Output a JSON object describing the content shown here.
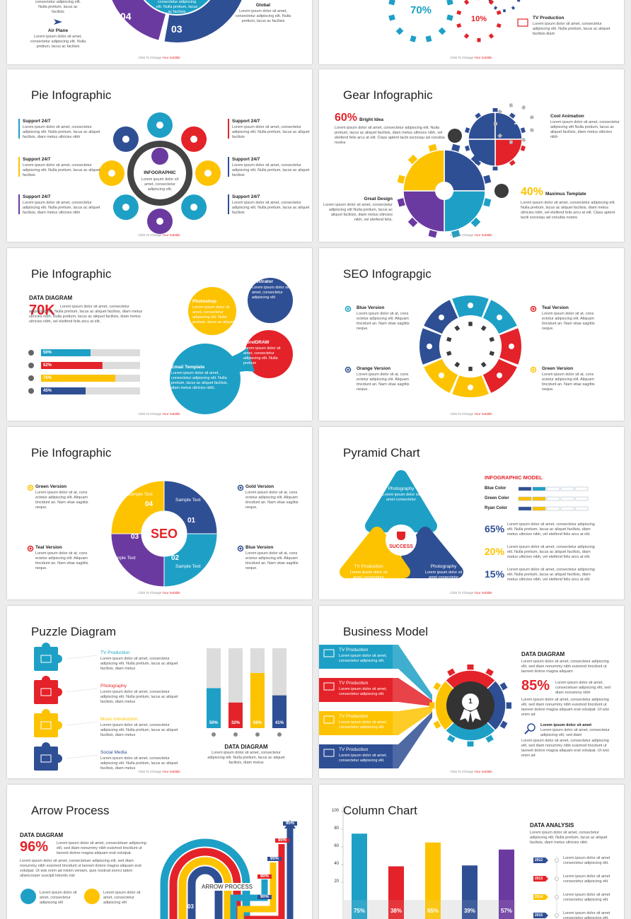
{
  "footer": {
    "lead": "Click To Change",
    "accent": "Your Subtitle"
  },
  "s1": {
    "top_text": "consectetur adipiscing elit. Nulla pretium, lacus ac facilisis",
    "numbers": [
      "04",
      "03"
    ],
    "items": [
      {
        "title": "Air Plane",
        "text": "Lorem ipsum dolor sit amet, consectetur adipiscing elit. Nulla pretium, lacus ac facilisis"
      },
      {
        "title": "Global",
        "text": "Lorem ipsum dolor sit amet, consectetur adipiscing elit. Nulla pretium, lacus ac facilisis"
      }
    ]
  },
  "s2": {
    "percents": [
      "70%",
      "10%"
    ],
    "item": {
      "title": "TV Production",
      "text": "Lorem ipsum dolor sit amet, consectetur adipiscing elit. Nulla pretium, lacus ac aliquet facilisis diam"
    }
  },
  "s3": {
    "title": "Pie Infographic",
    "items": [
      {
        "title": "Support 24/7",
        "text": "Lorem ipsum dolor sit amet, consectetur adipiscing elit. Nulla pretium, lacus ac aliquet facilisis, diam metus ultricies nibh"
      },
      {
        "title": "Support 24/7",
        "text": "Lorem ipsum dolor sit amet, consectetur adipiscing elit. Nulla pretium, lacus ac aliquet facilisis"
      },
      {
        "title": "Support 24/7",
        "text": "Lorem ipsum dolor sit amet, consectetur adipiscing elit. Nulla pretium, lacus ac aliquet facilisis, diam metus ultricies nibh"
      },
      {
        "title": "Support 24/7",
        "text": "Lorem ipsum dolor sit amet, consectetur adipiscing elit. Nulla pretium, lacus ac aliquet facilisis"
      },
      {
        "title": "Support 24/7",
        "text": "Lorem ipsum dolor sit amet, consectetur adipiscing elit. Nulla pretium, lacus ac aliquet facilisis"
      },
      {
        "title": "Support 24/7",
        "text": "Lorem ipsum dolor sit amet, consectetur adipiscing elit. Nulla pretium, lacus ac aliquet facilisis"
      }
    ],
    "center": {
      "title": "INFOGRAPHIC",
      "text": "Lorem ipsum dolor sit amet, consectetur adipiscing elit."
    }
  },
  "s4": {
    "title": "Gear Infographic",
    "items": [
      {
        "value": "60%",
        "title": "Bright Idea",
        "text": "Lorem ipsum dolor sit amet, consectetur adipiscing elit. Nulla pretium, lacus ac aliquet facilisis, diam metus ultricies nibh, vel eleifend felis arcu at elit. Class aptent taciti sociosqu ad conubia nostra"
      },
      {
        "title": "Cool Animation",
        "text": "Lorem ipsum dolor sit amet, consectetur adipiscing elit Nulla pretium, lacus ac aliquet facilisis, diam metus ultricies nibh"
      },
      {
        "title": "Great Design",
        "text": "Lorem ipsum dolor sit amet, consectetur adipiscing elit Nulla pretium, lacus ac aliquet facilisis, diam metus ultricies nibh, vel eleifend felis."
      },
      {
        "value": "40%",
        "title": "Maximus Template",
        "text": "Lorem ipsum dolor sit amet, consectetur adipiscing elit. Nulla pretium, lacus ac aliquet facilisis, diam metus ultricies nibh, vel eleifend felis arcu at elit. Class aptent taciti sociosqu ad conubia nostra"
      }
    ]
  },
  "s5": {
    "title": "Pie Infographic",
    "heading": "DATA DIAGRAM",
    "big": "70K",
    "text": "Lorem ipsum dolor sit amet, consectetur adipiscing elit. Nulla pretium, lacus ac aliquet facilisis, diam metus ultricies nibh. Nulla pretium, lacus ac aliquet facilisis, diam metus ultricies nibh, vel eleifend felis arcu at elit.",
    "bars": {
      "values": [
        50,
        62,
        75,
        45
      ],
      "value_labels": [
        "50%",
        "62%",
        "75%",
        "45%"
      ],
      "max": 100,
      "colors": [
        "#1ea0c6",
        "#e42229",
        "#fdc300",
        "#2f4f94"
      ]
    },
    "bubbles": [
      {
        "title": "Photoshop",
        "text": "Lorem ipsum dolor sit amet, consectetur adipiscing elit. Nulla pretium, lacus ac aliquet"
      },
      {
        "title": "Illustrator",
        "text": "Lorem ipsum dolor sit amet, consectetur adipiscing elit"
      },
      {
        "title": "CorelDRAW",
        "text": "Lorem ipsum dolor sit amet, consectetur adipiscing elit. Nulla pretium"
      },
      {
        "title": "Email Template",
        "text": "Lorem ipsum dolor sit amet, consectetur adipiscing elit. Nulla pretium, lacus ac aliquet facilisis, diam metus ultricies nibh."
      }
    ]
  },
  "s6": {
    "title": "SEO Infograpgic",
    "center": "SEO",
    "items": [
      {
        "title": "Blue Version",
        "text": "Lorem ipsum dolor sit at, cons ectetur adipiscing elit. Aliquam tincidunt an. Nam vitae sagittis neque."
      },
      {
        "title": "Teal Version",
        "text": "Lorem ipsum dolor sit at, cons ectetur adipiscing elit. Aliquam tincidunt an. Nam vitae sagittis neque."
      },
      {
        "title": "Orange Version",
        "text": "Lorem ipsum dolor sit at, cons ectetur adipiscing elit. Aliquam tincidunt an. Nam vitae sagittis neque."
      },
      {
        "title": "Green Version",
        "text": "Lorem ipsum dolor sit at, cons ectetur adipiscing elit. Aliquam tincidunt an. Nam vitae sagittis neque."
      }
    ]
  },
  "s7": {
    "title": "Pie Infographic",
    "center": "SEO",
    "items": [
      {
        "title": "Green Version",
        "text": "Lorem ipsum dolor sit at, cons ectetur adipiscing elit. Aliquam tincidunt an. Nam vitae sagittis neque."
      },
      {
        "title": "Teal Version",
        "text": "Lorem ipsum dolor sit at, cons ectetur adipiscing elit. Aliquam tincidunt an. Nam vitae sagittis neque."
      },
      {
        "title": "Gold Version",
        "text": "Lorem ipsum dolor sit at, cons ectetur adipiscing elit. Aliquam tincidunt an. Nam vitae sagittis neque."
      },
      {
        "title": "Blue Version",
        "text": "Lorem ipsum dolor sit at, cons ectetur adipiscing elit. Aliquam tincidunt an. Nam vitae sagittis neque."
      }
    ],
    "segments": [
      {
        "label": "Sample Text",
        "number": "04"
      },
      {
        "label": "Sample Text",
        "number": "01"
      },
      {
        "label": "Sample Text",
        "number": "02"
      },
      {
        "label": "Sample Text",
        "number": "03"
      }
    ]
  },
  "s8": {
    "title": "Pyramid Chart",
    "center": "SUCCESS",
    "parts": [
      {
        "title": "Photography",
        "text": "Lorem ipsum dolor sit amet consectetur"
      },
      {
        "title": "Photography",
        "text": "Lorem ipsum dolor sit amet consectetur"
      },
      {
        "title": "TV Production",
        "text": "Lorem ipsum dolor sit amet, consectetur adipiscing elit."
      }
    ],
    "heading": "INFOGRAPHIC MODEL",
    "legend": [
      "Blue Color",
      "Green Color",
      "Ryan Color"
    ],
    "stats": [
      {
        "value": "65%",
        "text": "Lorem ipsum dolor sit amet, consectetur adipiscing elit. Nulla pretium, lacus ac aliquet facilisis, diam metus ultricies nibh, vel eleifend felis arcu at elit."
      },
      {
        "value": "20%",
        "text": "Lorem ipsum dolor sit amet, consectetur adipiscing elit. Nulla pretium, lacus ac aliquet facilisis, diam metus ultricies nibh, vel eleifend felis arcu at elit."
      },
      {
        "value": "15%",
        "text": "Lorem ipsum dolor sit amet, consectetur adipiscing elit. Nulla pretium, lacus ac aliquet facilisis, diam metus ultricies nibh, vel eleifend felis arcu at elit."
      }
    ]
  },
  "s9": {
    "title": "Puzzle Diagram",
    "items": [
      {
        "title": "TV Production",
        "text": "Lorem ipsum dolor sit amet, consectetur adipiscing elit. Nulla pretium, lacus ac aliquet facilisis, diam metus"
      },
      {
        "title": "Photography",
        "text": "Lorem ipsum dolor sit amet, consectetur adipiscing elit. Nulla pretium, lacus ac aliquet facilisis, diam metus"
      },
      {
        "title": "Music Introduction",
        "text": "Lorem ipsum dolor sit amet, consectetur adipiscing elit. Nulla pretium, lacus ac aliquet facilisis, diam metus"
      },
      {
        "title": "Social Media",
        "text": "Lorem ipsum dolor sit amet, consectetur adipiscing elit. Nulla pretium, lacus ac aliquet facilisis, diam metus"
      }
    ],
    "columns": {
      "values": [
        50,
        32,
        69,
        41
      ],
      "value_labels": [
        "50%",
        "32%",
        "69%",
        "41%"
      ],
      "max": 100,
      "colors": [
        "#1ea0c6",
        "#e42229",
        "#fdc300",
        "#2f4f94"
      ]
    },
    "heading": "DATA DIAGRAM",
    "text": "Lorem ipsum dolor sit amet, consectetur adipiscing elit. Nulla pretium, lacus ac aliquet facilisis, diam metus"
  },
  "s10": {
    "title": "Business Model",
    "bands": [
      {
        "title": "TV Production",
        "text": "Lorem ipsum dolor sit amet, consectetur adipiscing elit."
      },
      {
        "title": "TV Production",
        "text": "Lorem ipsum dolor sit amet, consectetur adipiscing elit."
      },
      {
        "title": "TV Production",
        "text": "Lorem ipsum dolor sit amet, consectetur adipiscing elit."
      },
      {
        "title": "TV Production",
        "text": "Lorem ipsum dolor sit amet, consectetur adipiscing elit."
      }
    ],
    "badge": "1",
    "heading": "DATA DIAGRAM",
    "big": "85%",
    "texts": [
      "Lorem ipsum dolor sit amet, consectetur adipiscing elit, sed diam nonummy nibh euismod tincidunt ut laoreet dolore magna aliquam",
      "Lorem ipsum dolor sit amet, consectetuer adipiscing elit, sed diam nonummy nibh",
      "Lorem ipsum dolor sit amet, consectetur adipiscing elit, sed diam nonummy nibh euismod tincidunt ut laoreet dolore magna aliquam erat volutpat. Ut wisi enim ad",
      "Lorem ipsum dolor sit amet, consectetur adipiscing elit, sed diam nonummy nibh euismod tincidunt ut laoreet dolore magna aliquam erat volutpat. Ut wisi enim ad"
    ],
    "note": {
      "title": "Lorem ipsum dolor sit amet",
      "text": "Lorem ipsum dolor sit amet, consectetur adipiscing elit, sed diam"
    }
  },
  "s11": {
    "title": "Arrow Process",
    "heading": "DATA DIAGRAM",
    "big": "96%",
    "texts": [
      "Lorem ipsum dolor sit amet, consectetuer adipiscing elit, sed diam nonummy nibh euismod tincidunt ut laoreet dolore magna aliquam erat volutpat.",
      "Lorem ipsum dolor sit amet, consectetuer adipiscing elit, sed diam nonummy nibh euismod tincidunt ut laoreet dolore magna aliquam erat volutpat. Ut wisi enim ad minim veniam, quis nostrud exerci tation ullamcorper suscipit lobortis nisl"
    ],
    "icons": [
      "Lorem ipsum dolor sit amet, consectetur adipiscing elit",
      "Lorem ipsum dolor sit amet, consectetur adipiscing elit"
    ],
    "center": "ARROW PROCESS",
    "arrow_labels": [
      "90%",
      "90%",
      "90%",
      "90%",
      "90%"
    ],
    "number": "03"
  },
  "s12": {
    "column_chart": {
      "type": "bar",
      "title": "Column Chart",
      "ylim": [
        0,
        100
      ],
      "yticks": [
        20,
        40,
        60,
        80,
        100
      ],
      "values": [
        75,
        38,
        65,
        39,
        57
      ],
      "value_labels": [
        "75%",
        "38%",
        "65%",
        "39%",
        "57%"
      ],
      "colors": [
        "#1ea0c6",
        "#e42229",
        "#fdc300",
        "#2f4f94",
        "#6b3aa0"
      ]
    },
    "heading": "DATA ANALYSIS",
    "text": "Lorem ipsum dolor sit amet, consectetur adipiscing elit. Nulla pretium, lacus ac aliquet facilisis, diam metus ultricies nibh",
    "timeline": [
      {
        "year": "2012",
        "text": "Lorem ipsum dolor sit amet consectetur adipiscing elit."
      },
      {
        "year": "2013",
        "text": "Lorem ipsum dolor sit amet consectetur adipiscing elit."
      },
      {
        "year": "2014",
        "text": "Lorem ipsum dolor sit amet consectetur adipiscing elit."
      },
      {
        "year": "2015",
        "text": "Lorem ipsum dolor sit amet consectetur adipiscing elit."
      }
    ]
  }
}
